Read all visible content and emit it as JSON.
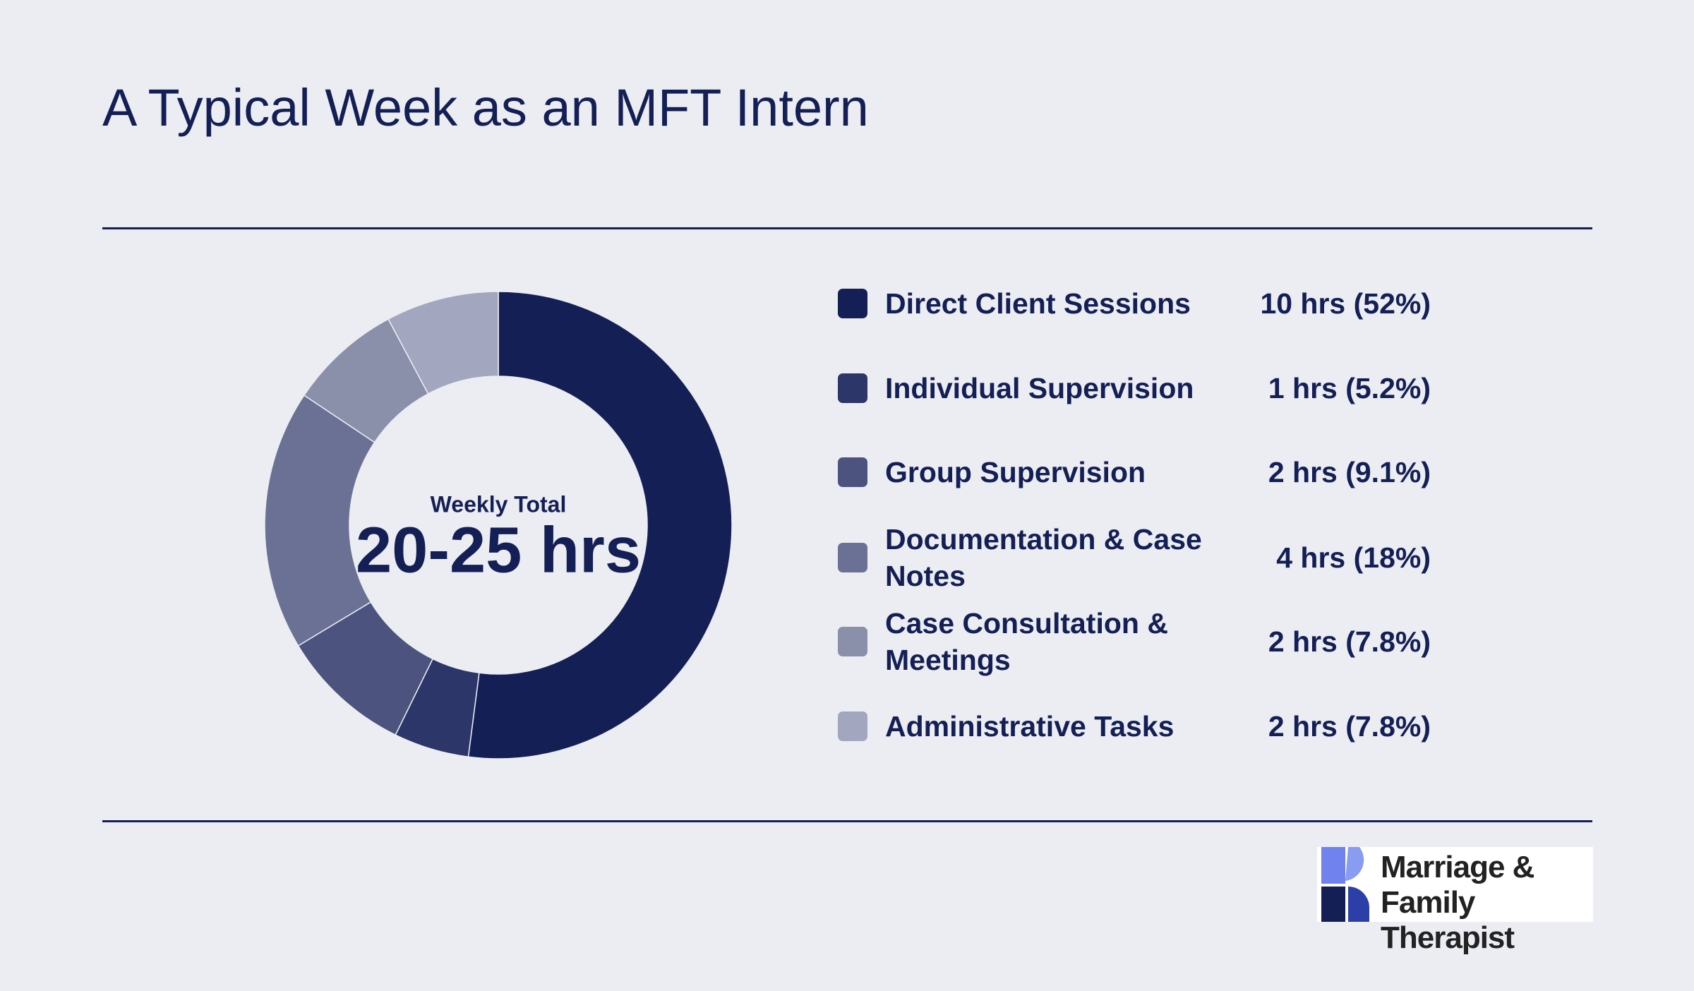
{
  "chart_data": {
    "type": "donut",
    "title": "A Typical Week as an MFT Intern",
    "center_label": "Weekly Total",
    "center_value": "20-25 hrs",
    "categories": [
      "Direct Client Sessions",
      "Individual Supervision",
      "Group Supervision",
      "Documentation & Case Notes",
      "Case Consultation & Meetings",
      "Administrative Tasks"
    ],
    "values": [
      52,
      5.2,
      9.1,
      18,
      7.8,
      7.8
    ],
    "value_labels": [
      "10 hrs (52%)",
      "1 hrs (5.2%)",
      "2 hrs (9.1%)",
      "4 hrs (18%)",
      "2 hrs (7.8%)",
      "2 hrs (7.8%)"
    ],
    "colors": [
      "#141f55",
      "#2c3669",
      "#4b537e",
      "#6a7194",
      "#8a8faa",
      "#a3a6bf"
    ]
  },
  "logo": {
    "lines": [
      "Marriage & Family",
      "Therapist"
    ]
  }
}
